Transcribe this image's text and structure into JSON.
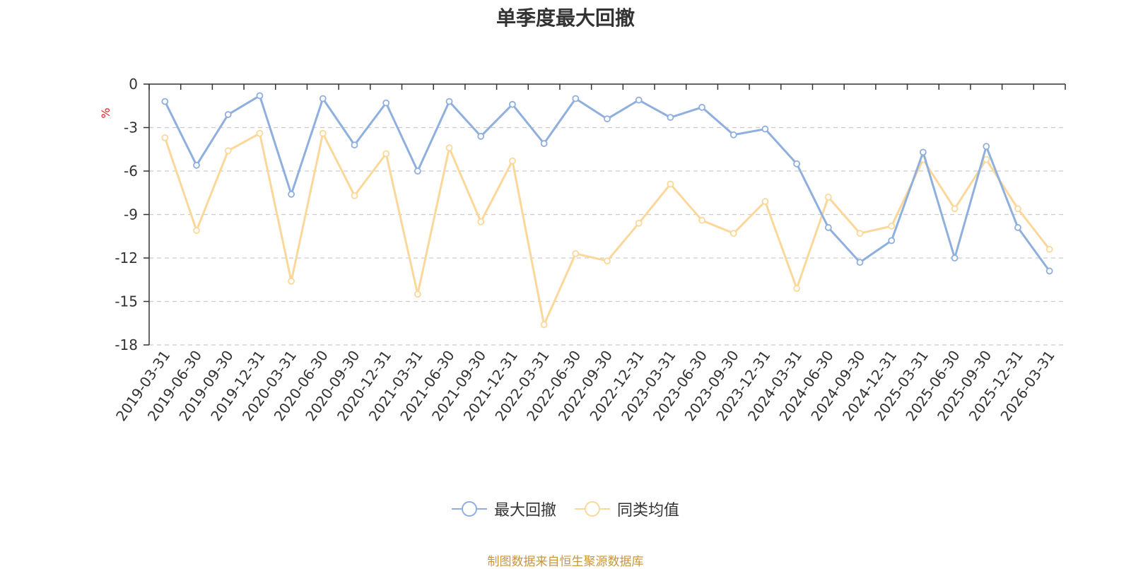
{
  "chart_data": {
    "type": "line",
    "title": "单季度最大回撤",
    "ylabel": "%",
    "ylim": [
      -18,
      0
    ],
    "yticks": [
      "0",
      "-3",
      "-6",
      "-9",
      "-12",
      "-15",
      "-18"
    ],
    "grid": true,
    "legend_position": "bottom",
    "categories": [
      "2019-03-31",
      "2019-06-30",
      "2019-09-30",
      "2019-12-31",
      "2020-03-31",
      "2020-06-30",
      "2020-09-30",
      "2020-12-31",
      "2021-03-31",
      "2021-06-30",
      "2021-09-30",
      "2021-12-31",
      "2022-03-31",
      "2022-06-30",
      "2022-09-30",
      "2022-12-31",
      "2023-03-31",
      "2023-06-30",
      "2023-09-30",
      "2023-12-31",
      "2024-03-31",
      "2024-06-30",
      "2024-09-30",
      "2024-12-31",
      "2025-03-31",
      "2025-06-30",
      "2025-09-30",
      "2025-12-31",
      "2026-03-31"
    ],
    "series": [
      {
        "name": "最大回撤",
        "color": "#8fafde",
        "values": [
          -1.2,
          -5.6,
          -2.1,
          -0.8,
          -7.6,
          -1.0,
          -4.2,
          -1.3,
          -6.0,
          -1.2,
          -3.6,
          -1.4,
          -4.1,
          -1.0,
          -2.4,
          -1.1,
          -2.3,
          -1.6,
          -3.5,
          -3.1,
          -5.5,
          -9.9,
          -12.3,
          -10.8,
          -4.7,
          -12.0,
          -4.3,
          -9.9,
          -12.9
        ]
      },
      {
        "name": "同类均值",
        "color": "#fbd89a",
        "values": [
          -3.7,
          -10.1,
          -4.6,
          -3.4,
          -13.6,
          -3.4,
          -7.7,
          -4.8,
          -14.5,
          -4.4,
          -9.5,
          -5.3,
          -16.6,
          -11.7,
          -12.2,
          -9.6,
          -6.9,
          -9.4,
          -10.3,
          -8.1,
          -14.1,
          -7.8,
          -10.3,
          -9.8,
          -5.2,
          -8.6,
          -5.2,
          -8.6,
          -11.4
        ]
      }
    ]
  },
  "source_note": "制图数据来自恒生聚源数据库"
}
